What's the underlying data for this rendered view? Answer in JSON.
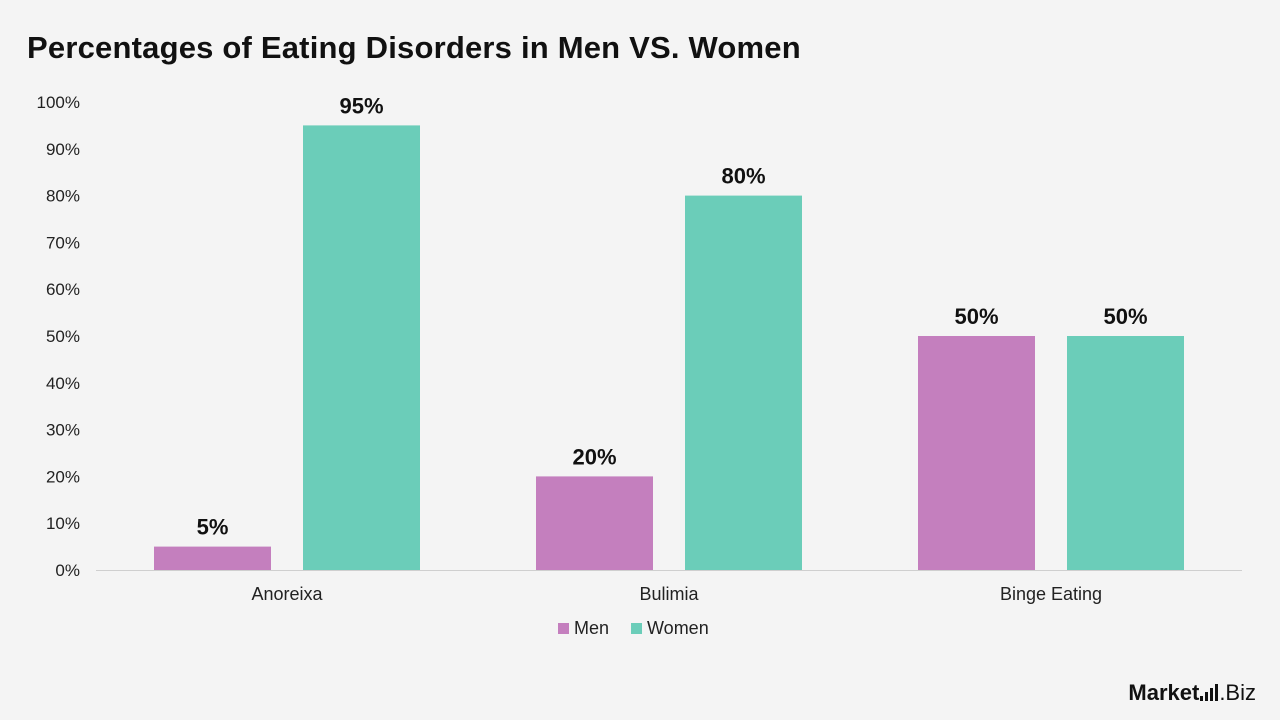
{
  "brand": {
    "logo_text": "Market.Biz",
    "primary": "Market",
    "secondary": ".Biz"
  },
  "chart_data": {
    "type": "bar",
    "title": "Percentages of Eating Disorders in Men VS. Women",
    "categories": [
      "Anoreixa",
      "Bulimia",
      "Binge Eating"
    ],
    "series": [
      {
        "name": "Men",
        "values": [
          5,
          20,
          50
        ],
        "color": "#c47fbe"
      },
      {
        "name": "Women",
        "values": [
          95,
          80,
          50
        ],
        "color": "#6bcdb9"
      }
    ],
    "value_suffix": "%",
    "ylim": [
      0,
      100
    ],
    "yticks": [
      0,
      10,
      20,
      30,
      40,
      50,
      60,
      70,
      80,
      90,
      100
    ],
    "xlabel": "",
    "ylabel": "",
    "grid": false,
    "legend_position": "bottom"
  }
}
